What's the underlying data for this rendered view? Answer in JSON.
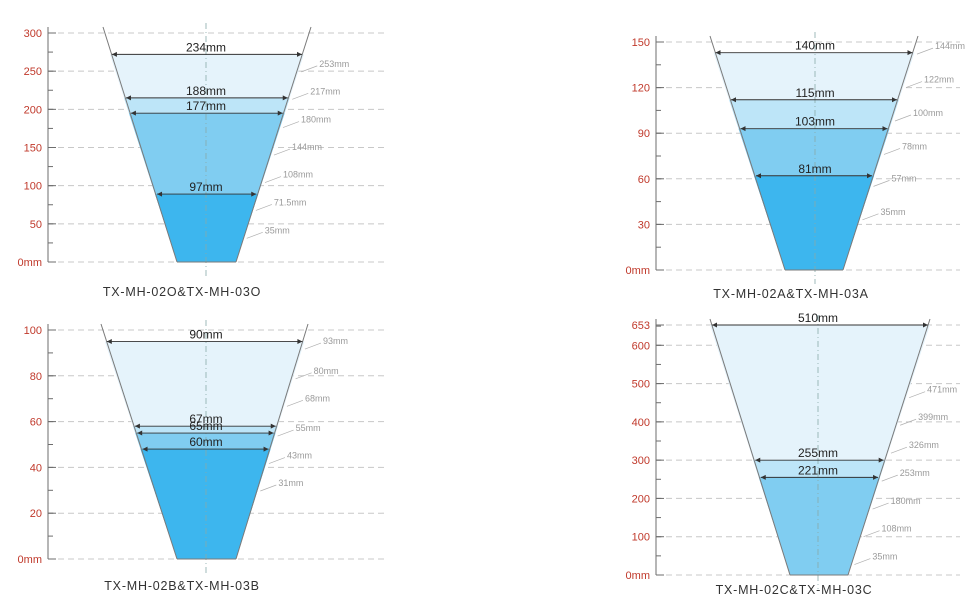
{
  "colors": {
    "tick_label": "#c0392b",
    "fill_levels": [
      "#e5f3fb",
      "#bde5f8",
      "#80cdf1",
      "#3db6ee"
    ],
    "outline": "#7a7a7a"
  },
  "diagrams": [
    {
      "caption": "TX-MH-02O&TX-MH-03O",
      "y_max": 300,
      "y_ticks": [
        {
          "v": 0,
          "label": "0mm"
        },
        {
          "v": 50,
          "label": "50"
        },
        {
          "v": 100,
          "label": "100"
        },
        {
          "v": 150,
          "label": "150"
        },
        {
          "v": 200,
          "label": "200"
        },
        {
          "v": 250,
          "label": "250"
        },
        {
          "v": 300,
          "label": "300"
        }
      ],
      "minor_every": 25,
      "right_labels": [
        {
          "v": 253,
          "label": "253mm"
        },
        {
          "v": 217,
          "label": "217mm"
        },
        {
          "v": 180,
          "label": "180mm"
        },
        {
          "v": 144,
          "label": "144mm"
        },
        {
          "v": 108,
          "label": "108mm"
        },
        {
          "v": 71.5,
          "label": "71.5mm"
        },
        {
          "v": 35,
          "label": "35mm"
        }
      ],
      "levels": [
        {
          "v": 272,
          "width_label": "234mm"
        },
        {
          "v": 215,
          "width_label": "188mm"
        },
        {
          "v": 195,
          "width_label": "177mm"
        },
        {
          "v": 89,
          "width_label": "97mm"
        }
      ]
    },
    {
      "caption": "TX-MH-02A&TX-MH-03A",
      "y_max": 150,
      "y_ticks": [
        {
          "v": 0,
          "label": "0mm"
        },
        {
          "v": 30,
          "label": "30"
        },
        {
          "v": 60,
          "label": "60"
        },
        {
          "v": 90,
          "label": "90"
        },
        {
          "v": 120,
          "label": "120"
        },
        {
          "v": 150,
          "label": "150"
        }
      ],
      "minor_every": 15,
      "right_labels": [
        {
          "v": 144,
          "label": "144mm"
        },
        {
          "v": 122,
          "label": "122mm"
        },
        {
          "v": 100,
          "label": "100mm"
        },
        {
          "v": 78,
          "label": "78mm"
        },
        {
          "v": 57,
          "label": "57mm"
        },
        {
          "v": 35,
          "label": "35mm"
        }
      ],
      "levels": [
        {
          "v": 143,
          "width_label": "140mm"
        },
        {
          "v": 112,
          "width_label": "115mm"
        },
        {
          "v": 93,
          "width_label": "103mm"
        },
        {
          "v": 62,
          "width_label": "81mm"
        }
      ]
    },
    {
      "caption": "TX-MH-02B&TX-MH-03B",
      "y_max": 100,
      "y_ticks": [
        {
          "v": 0,
          "label": "0mm"
        },
        {
          "v": 20,
          "label": "20"
        },
        {
          "v": 40,
          "label": "40"
        },
        {
          "v": 60,
          "label": "60"
        },
        {
          "v": 80,
          "label": "80"
        },
        {
          "v": 100,
          "label": "100"
        }
      ],
      "minor_every": 10,
      "right_labels": [
        {
          "v": 93,
          "label": "93mm"
        },
        {
          "v": 80,
          "label": "80mm"
        },
        {
          "v": 68,
          "label": "68mm"
        },
        {
          "v": 55,
          "label": "55mm"
        },
        {
          "v": 43,
          "label": "43mm"
        },
        {
          "v": 31,
          "label": "31mm"
        }
      ],
      "levels": [
        {
          "v": 95,
          "width_label": "90mm"
        },
        {
          "v": 58,
          "width_label": "67mm"
        },
        {
          "v": 55,
          "width_label": "65mm"
        },
        {
          "v": 48,
          "width_label": "60mm"
        }
      ]
    },
    {
      "caption": "TX-MH-02C&TX-MH-03C",
      "y_max": 653,
      "y_ticks": [
        {
          "v": 0,
          "label": "0mm"
        },
        {
          "v": 100,
          "label": "100"
        },
        {
          "v": 200,
          "label": "200"
        },
        {
          "v": 300,
          "label": "300"
        },
        {
          "v": 400,
          "label": "400"
        },
        {
          "v": 500,
          "label": "500"
        },
        {
          "v": 600,
          "label": "600"
        },
        {
          "v": 653,
          "label": "653"
        }
      ],
      "minor_every": 50,
      "right_labels": [
        {
          "v": 471,
          "label": "471mm"
        },
        {
          "v": 399,
          "label": "399mm"
        },
        {
          "v": 326,
          "label": "326mm"
        },
        {
          "v": 253,
          "label": "253mm"
        },
        {
          "v": 180,
          "label": "180mm"
        },
        {
          "v": 108,
          "label": "108mm"
        },
        {
          "v": 35,
          "label": "35mm"
        }
      ],
      "levels": [
        {
          "v": 653,
          "width_label": "510mm"
        },
        {
          "v": 300,
          "width_label": "255mm"
        },
        {
          "v": 255,
          "width_label": "221mm"
        }
      ]
    }
  ]
}
